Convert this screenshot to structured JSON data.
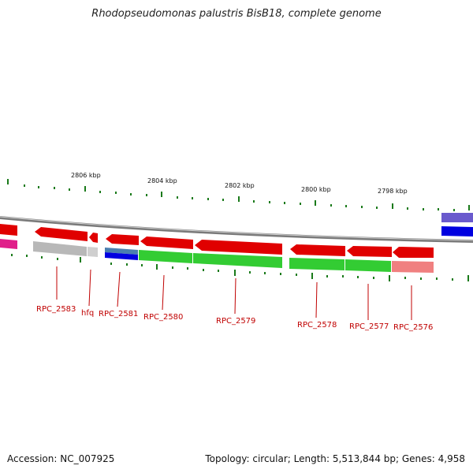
{
  "title": "Rhodopseudomonas palustris BisB18, complete genome",
  "footer": {
    "accession": "Accession: NC_007925",
    "stats": "Topology: circular; Length: 5,513,844 bp; Genes: 4,958"
  },
  "colors": {
    "forward_cds": "#e00000",
    "reverse_gene": "#33cc33",
    "grey_gene": "#b0b0b0",
    "pink_gene": "#f08080",
    "blue_gene": "#0000e0",
    "steel_gene": "#4a7fb0",
    "magenta_gene": "#e0208a",
    "purple_gene": "#6a5acd",
    "backbone": "#8c8c8c",
    "tick": "#1a7a1a",
    "label": "#c00000"
  },
  "kbp_labels": [
    "2806 kbp",
    "2804 kbp",
    "2802 kbp",
    "2800 kbp",
    "2798 kbp"
  ],
  "gene_labels": [
    "RPC_2583",
    "hfq",
    "RPC_2581",
    "RPC_2580",
    "RPC_2579",
    "RPC_2578",
    "RPC_2577",
    "RPC_2576"
  ]
}
